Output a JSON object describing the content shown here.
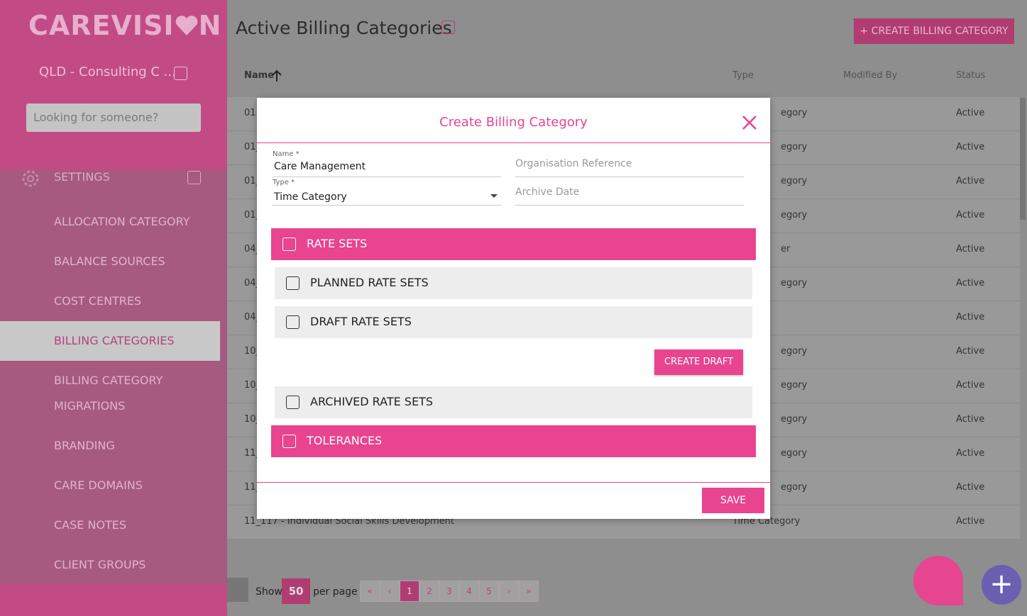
{
  "sidebar": {
    "logo": {
      "left": "CAREVISI",
      "right": "N"
    },
    "organisation": "QLD - Consulting C ...",
    "search_placeholder": "Looking for someone?",
    "section": "SETTINGS",
    "menu": [
      "ALLOCATION CATEGORY",
      "BALANCE SOURCES",
      "COST CENTRES",
      "BILLING CATEGORIES",
      "BILLING CATEGORY MIGRATIONS",
      "BRANDING",
      "CARE DOMAINS",
      "CASE NOTES",
      "CLIENT GROUPS"
    ],
    "active_item": "BILLING CATEGORIES"
  },
  "header": {
    "title": "Active Billing Categories",
    "create_button": "+ CREATE BILLING CATEGORY"
  },
  "table": {
    "columns": [
      "Name",
      "Type",
      "Modified By",
      "Status"
    ],
    "rows": [
      [
        "01",
        "egory",
        "Active"
      ],
      [
        "01_",
        "egory",
        "Active"
      ],
      [
        "01_",
        "egory",
        "Active"
      ],
      [
        "01_",
        "egory",
        "Active"
      ],
      [
        "04_",
        "er",
        "Active"
      ],
      [
        "04_",
        "egory",
        "Active"
      ],
      [
        "04_",
        null,
        "Active"
      ],
      [
        "10_",
        "egory",
        "Active"
      ],
      [
        "10_",
        "egory",
        "Active"
      ],
      [
        "10_",
        "egory",
        "Active"
      ],
      [
        "11_",
        "egory",
        "Active"
      ],
      [
        "11_",
        "egory",
        "Active"
      ],
      [
        "11_117 - Individual Social Skills Development",
        "Time Category",
        "Active"
      ]
    ]
  },
  "pagination": {
    "show": "Show",
    "page_size": "50",
    "per_page": "per page",
    "controls": [
      "«",
      "‹",
      "1",
      "2",
      "3",
      "4",
      "5",
      "›",
      "»"
    ],
    "current": "1"
  },
  "modal": {
    "title": "Create Billing Category",
    "fields": [
      {
        "label": "Name *",
        "value": "Care Management"
      },
      {
        "label": "Type *",
        "value": "Time Category"
      },
      {
        "placeholder": "Organisation Reference"
      },
      {
        "placeholder": "Archive Date"
      }
    ],
    "sections": {
      "rate_sets": "RATE SETS",
      "planned": "PLANNED RATE SETS",
      "draft": "DRAFT RATE SETS",
      "create_draft": "CREATE DRAFT",
      "archived": "ARCHIVED RATE SETS",
      "tolerances": "TOLERANCES"
    },
    "save": "SAVE"
  }
}
